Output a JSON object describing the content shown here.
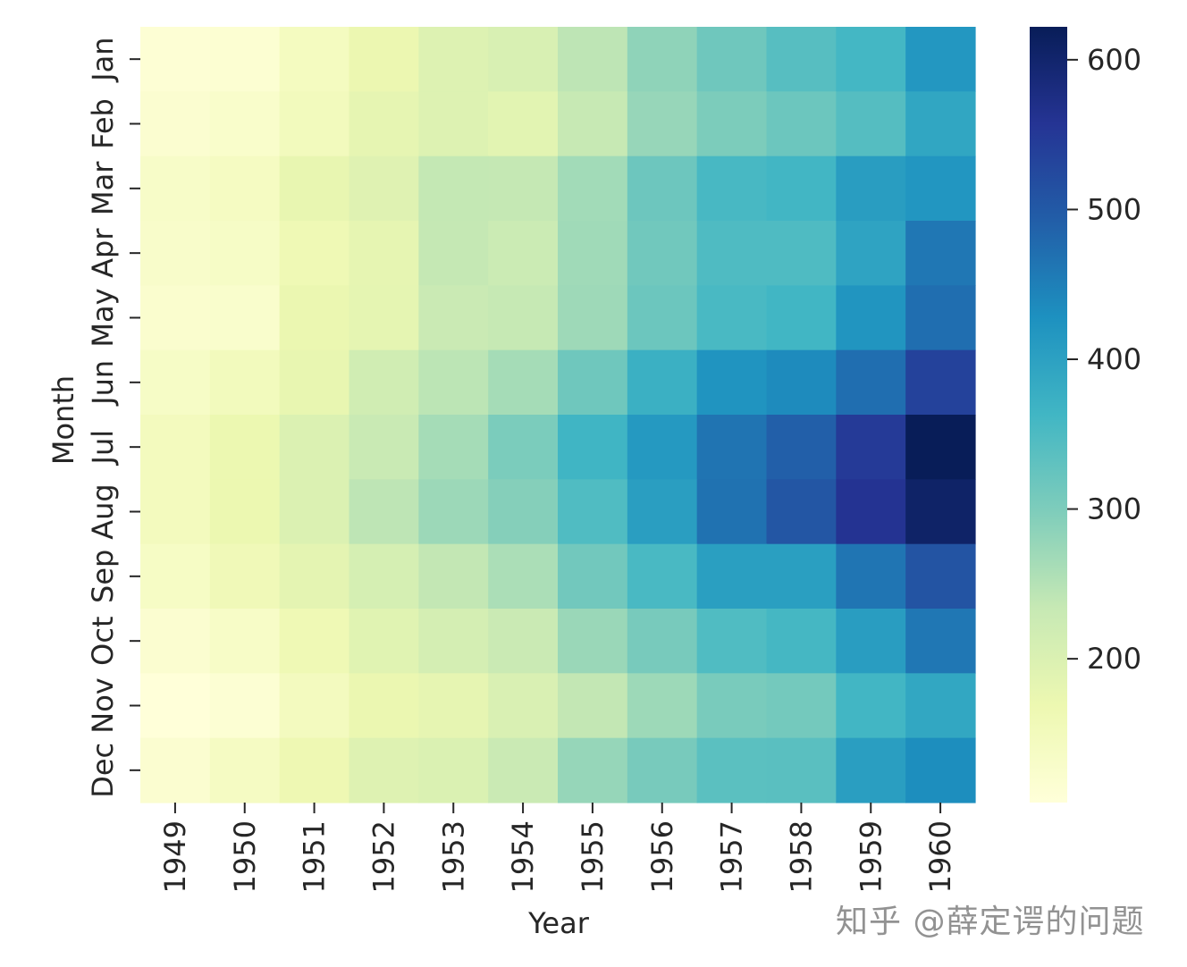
{
  "chart_data": {
    "type": "heatmap",
    "xlabel": "Year",
    "ylabel": "Month",
    "colormap": "YlGnBu",
    "colorbar_ticks": [
      200,
      300,
      400,
      500,
      600
    ],
    "colorbar_range": [
      104,
      622
    ],
    "x": [
      "1949",
      "1950",
      "1951",
      "1952",
      "1953",
      "1954",
      "1955",
      "1956",
      "1957",
      "1958",
      "1959",
      "1960"
    ],
    "y": [
      "Jan",
      "Feb",
      "Mar",
      "Apr",
      "May",
      "Jun",
      "Jul",
      "Aug",
      "Sep",
      "Oct",
      "Nov",
      "Dec"
    ],
    "values": [
      [
        112,
        115,
        145,
        171,
        196,
        204,
        242,
        284,
        315,
        340,
        360,
        417
      ],
      [
        118,
        126,
        150,
        180,
        196,
        188,
        233,
        277,
        301,
        318,
        342,
        391
      ],
      [
        132,
        141,
        178,
        193,
        236,
        235,
        267,
        317,
        356,
        362,
        406,
        419
      ],
      [
        129,
        135,
        163,
        181,
        235,
        227,
        269,
        313,
        348,
        348,
        396,
        461
      ],
      [
        121,
        125,
        172,
        183,
        229,
        234,
        270,
        318,
        355,
        363,
        420,
        472
      ],
      [
        135,
        149,
        178,
        218,
        243,
        264,
        315,
        374,
        422,
        435,
        472,
        535
      ],
      [
        148,
        170,
        199,
        230,
        264,
        302,
        364,
        413,
        465,
        491,
        548,
        622
      ],
      [
        148,
        170,
        199,
        242,
        272,
        293,
        347,
        405,
        467,
        505,
        559,
        606
      ],
      [
        136,
        158,
        184,
        209,
        237,
        259,
        312,
        355,
        404,
        404,
        463,
        508
      ],
      [
        119,
        133,
        162,
        191,
        211,
        229,
        274,
        306,
        347,
        359,
        407,
        461
      ],
      [
        104,
        114,
        146,
        172,
        180,
        203,
        237,
        271,
        305,
        310,
        362,
        390
      ],
      [
        118,
        140,
        166,
        194,
        201,
        229,
        278,
        306,
        336,
        337,
        405,
        432
      ]
    ]
  },
  "watermark": "知乎 @薛定谔的问题"
}
